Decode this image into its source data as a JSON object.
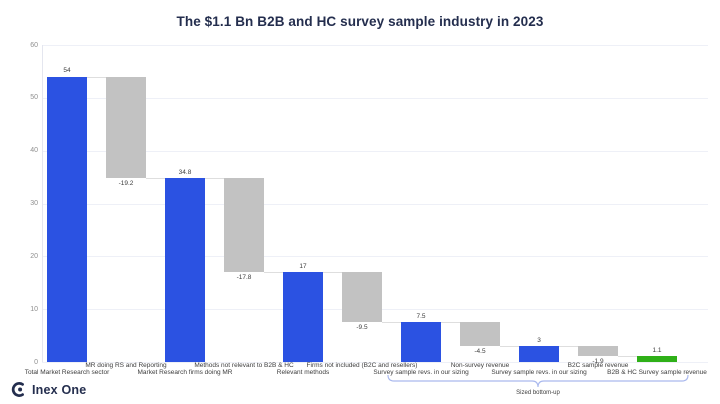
{
  "header": {
    "title": "The $1.1 Bn B2B and HC survey sample industry in 2023"
  },
  "logo": {
    "text": "Inex One"
  },
  "colors": {
    "title": "#242e4e",
    "logo": "#242e4e",
    "increase_blue": "#2b52e2",
    "decrease_gray": "#c2c2c2",
    "final_green": "#2fb018",
    "brace_blue": "#aab9ee",
    "grid": "#eef0f7"
  },
  "chart_data": {
    "type": "bar",
    "subtype": "waterfall",
    "title": "The $1.1 Bn B2B and HC survey sample industry in 2023",
    "xlabel": "",
    "ylabel": "",
    "ylim": [
      0,
      60
    ],
    "yticks": [
      60,
      50,
      40,
      30,
      20,
      10,
      0
    ],
    "grid": true,
    "legend": false,
    "categories": [
      "Total Market Research sector",
      "MR doing RS and Reporting",
      "Market Research firms doing MR",
      "Methods not relevant to B2B & HC",
      "Relevant methods",
      "Firms not included (B2C and resellers)",
      "Survey sample revs. in our sizing",
      "Non-survey revenue",
      "Survey sample revs. in our sizing",
      "B2C sample revenue",
      "B2B & HC Survey sample revenue"
    ],
    "values": [
      54,
      -19.2,
      34.8,
      -17.8,
      17,
      -9.5,
      7.5,
      -4.5,
      3,
      -1.9,
      1.1
    ],
    "bars": [
      {
        "label": "Total Market Research sector",
        "display": "54",
        "start": 0,
        "end": 54,
        "role": "increase_blue"
      },
      {
        "label": "MR doing RS and Reporting",
        "display": "-19.2",
        "start": 54,
        "end": 34.8,
        "role": "decrease_gray"
      },
      {
        "label": "Market Research firms doing MR",
        "display": "34.8",
        "start": 0,
        "end": 34.8,
        "role": "increase_blue"
      },
      {
        "label": "Methods not relevant to B2B & HC",
        "display": "-17.8",
        "start": 34.8,
        "end": 17,
        "role": "decrease_gray"
      },
      {
        "label": "Relevant methods",
        "display": "17",
        "start": 0,
        "end": 17,
        "role": "increase_blue"
      },
      {
        "label": "Firms not included (B2C and resellers)",
        "display": "-9.5",
        "start": 17,
        "end": 7.5,
        "role": "decrease_gray"
      },
      {
        "label": "Survey sample revs. in our sizing",
        "display": "7.5",
        "start": 0,
        "end": 7.5,
        "role": "increase_blue"
      },
      {
        "label": "Non-survey revenue",
        "display": "-4.5",
        "start": 7.5,
        "end": 3,
        "role": "decrease_gray"
      },
      {
        "label": "Survey sample revs. in our sizing",
        "display": "3",
        "start": 0,
        "end": 3,
        "role": "increase_blue"
      },
      {
        "label": "B2C sample revenue",
        "display": "-1.9",
        "start": 3,
        "end": 1.1,
        "role": "decrease_gray"
      },
      {
        "label": "B2B & HC Survey sample revenue",
        "display": "1.1",
        "start": 0,
        "end": 1.1,
        "role": "final_green"
      }
    ],
    "annotations": [
      {
        "type": "underbrace",
        "label": "Sized bottom-up",
        "from_bar_index": 6,
        "to_bar_index": 10
      }
    ]
  }
}
